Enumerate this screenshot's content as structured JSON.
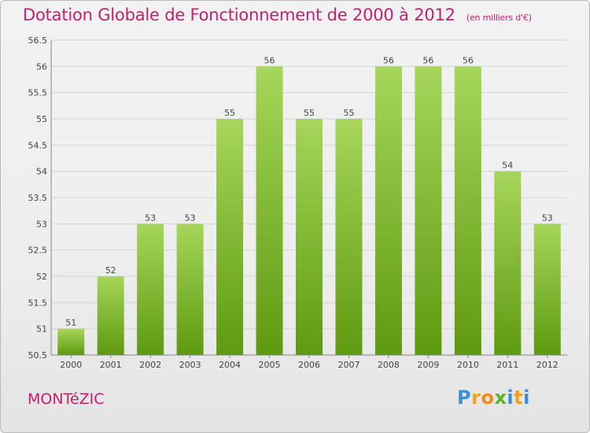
{
  "title": "Dotation Globale de Fonctionnement de 2000 à 2012",
  "subtitle": "(en milliers d'€)",
  "commune": "MONTéZIC",
  "logo": {
    "letters": [
      "P",
      "r",
      "o",
      "x",
      "i",
      "t",
      "i"
    ],
    "colors": [
      "#3a8fd6",
      "#f0a020",
      "#f08a20",
      "#5ab52a",
      "#3a8fd6",
      "#f0a020",
      "#3a8fd6"
    ]
  },
  "colors": {
    "title": "#c4206e",
    "bar_top": "#a6d65a",
    "bar_bottom": "#5e9a10",
    "axis": "#888888"
  },
  "chart_data": {
    "type": "bar",
    "categories": [
      "2000",
      "2001",
      "2002",
      "2003",
      "2004",
      "2005",
      "2006",
      "2007",
      "2008",
      "2009",
      "2010",
      "2011",
      "2012"
    ],
    "values": [
      51,
      52,
      53,
      53,
      55,
      56,
      55,
      55,
      56,
      56,
      56,
      54,
      53
    ],
    "labels": [
      "51",
      "52",
      "53",
      "53",
      "55",
      "56",
      "55",
      "55",
      "56",
      "56",
      "56",
      "54",
      "53"
    ],
    "ylim": [
      50.5,
      56.5
    ],
    "yticks": [
      "50.5",
      "51",
      "51.5",
      "52",
      "52.5",
      "53",
      "53.5",
      "54",
      "54.5",
      "55",
      "55.5",
      "56",
      "56.5"
    ],
    "grid": true,
    "xlabel": "",
    "ylabel": ""
  }
}
